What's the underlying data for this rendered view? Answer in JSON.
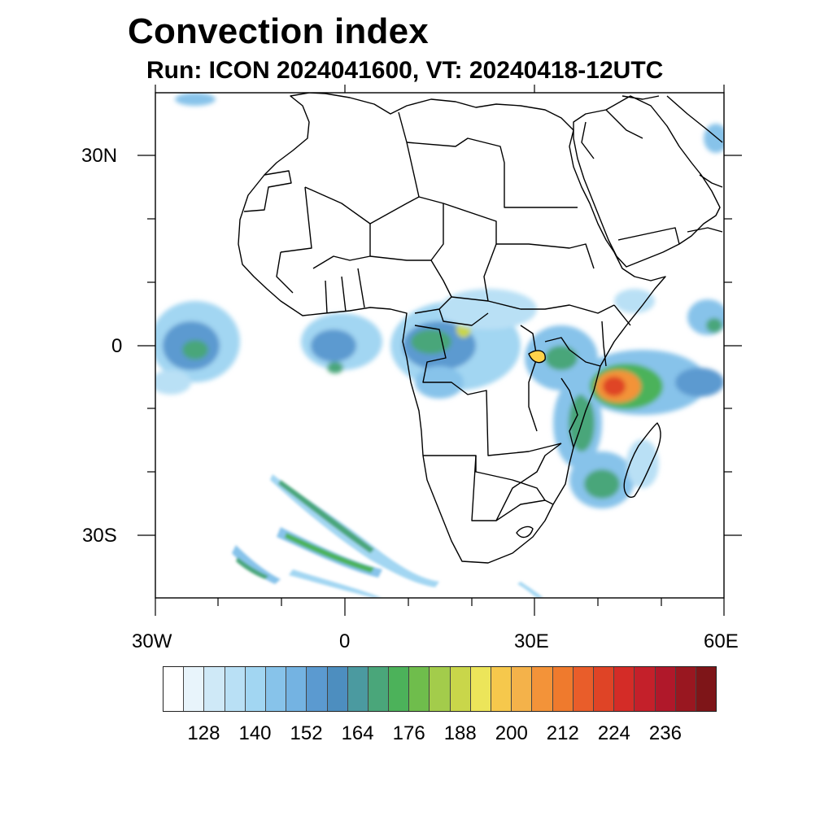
{
  "title": "Convection index",
  "subtitle": "Run: ICON 2024041600,  VT: 20240418-12UTC",
  "axes": {
    "lat_labels": [
      "30N",
      "0",
      "30S"
    ],
    "lon_labels": [
      "30W",
      "0",
      "30E",
      "60E"
    ],
    "lon_range": [
      -30,
      60
    ],
    "lat_range": [
      -40,
      40
    ]
  },
  "colorbar": {
    "colors": [
      "#ffffff",
      "#e8f4fb",
      "#cfe9f7",
      "#b9e0f5",
      "#a2d6f2",
      "#87c3ea",
      "#74b3e2",
      "#5b9ad0",
      "#4d8ebf",
      "#4b9aa0",
      "#4aa67a",
      "#4cb25a",
      "#6fbd4c",
      "#a3cc4b",
      "#c9d64a",
      "#ece55a",
      "#f6c84c",
      "#f4b24a",
      "#f39339",
      "#ef7a2d",
      "#e95d2a",
      "#df4426",
      "#d42c27",
      "#c4202a",
      "#b0182a",
      "#991720",
      "#7e1518"
    ],
    "labels": [
      "128",
      "140",
      "152",
      "164",
      "176",
      "188",
      "200",
      "212",
      "224",
      "236"
    ]
  },
  "chart_data": {
    "type": "heatmap",
    "title": "Convection index",
    "subtitle": "Run: ICON 2024041600,  VT: 20240418-12UTC",
    "variable": "Convection index",
    "model": "ICON",
    "run": "2024041600",
    "valid_time": "20240418-12UTC",
    "x_range_deg": [
      -30,
      60
    ],
    "y_range_deg": [
      -40,
      40
    ],
    "x_tick_labels": [
      "30W",
      "0",
      "30E",
      "60E"
    ],
    "y_tick_labels": [
      "30N",
      "0",
      "30S"
    ],
    "colorbar_tick_labels": [
      128,
      140,
      152,
      164,
      176,
      188,
      200,
      212,
      224,
      236
    ],
    "colorbar_levels": 27
  }
}
